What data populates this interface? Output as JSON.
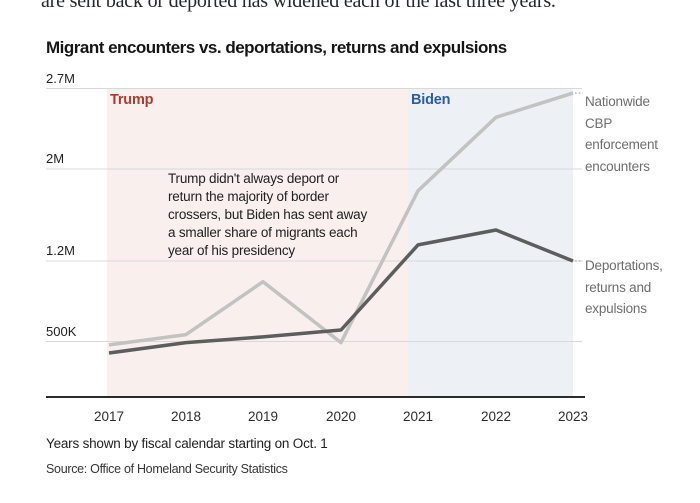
{
  "intro_text": "are sent back or deported has widened each of the last three years.",
  "chart": {
    "title": "Migrant encounters vs. deportations, returns and expulsions",
    "eras": [
      {
        "label": "Trump",
        "text_color": "#a73c31",
        "bg_color": "#f9efec"
      },
      {
        "label": "Biden",
        "text_color": "#2b5da4",
        "bg_color": "#edf1f6"
      }
    ],
    "annotation_lines": [
      "Trump didn't always deport or",
      "return the majority of border",
      "crossers, but Biden has sent away",
      "a smaller share of migrants each",
      "year of his presidency"
    ],
    "legend": [
      {
        "name": "Nationwide CBP enforcement encounters",
        "lines": [
          "Nationwide",
          "CBP",
          "enforcement",
          "encounters"
        ]
      },
      {
        "name": "Deportations, returns and expulsions",
        "lines": [
          "Deportations,",
          "returns and",
          "expulsions"
        ]
      }
    ],
    "footnote": "Years shown by fiscal calendar starting on Oct. 1",
    "source": "Source: Office of Homeland Security Statistics"
  },
  "chart_data": {
    "type": "line",
    "title": "Migrant encounters vs. deportations, returns and expulsions",
    "categories": [
      "2017",
      "2018",
      "2019",
      "2020",
      "2021",
      "2022",
      "2023"
    ],
    "series": [
      {
        "name": "Nationwide CBP enforcement encounters",
        "values_millions": [
          0.47,
          0.56,
          1.02,
          0.49,
          1.81,
          2.45,
          2.66
        ],
        "color": "#c2c2c0"
      },
      {
        "name": "Deportations, returns and expulsions",
        "values_millions": [
          0.4,
          0.49,
          0.54,
          0.6,
          1.34,
          1.47,
          1.2
        ],
        "color": "#5d5d5d"
      }
    ],
    "yticks": [
      {
        "label": "2.7M",
        "value": 2.7
      },
      {
        "label": "2M",
        "value": 2.0
      },
      {
        "label": "1.2M",
        "value": 1.2
      },
      {
        "label": "500K",
        "value": 0.5
      }
    ],
    "ylim": [
      0,
      2.7
    ],
    "xlabel": "",
    "ylabel": "",
    "grid": true,
    "legend_position": "right",
    "colors": {
      "grid_line": "#d8d8d8",
      "axis_line": "#2b2b2b",
      "connector_dots": "#aaaaaa"
    }
  }
}
